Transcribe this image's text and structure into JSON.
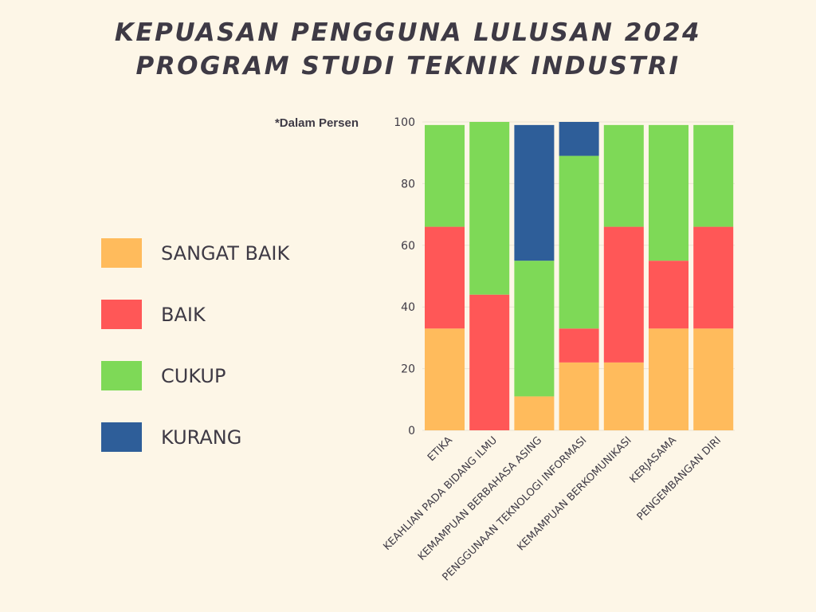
{
  "title": {
    "line1": "KEPUASAN PENGGUNA LULUSAN 2024",
    "line2": "PROGRAM STUDI TEKNIK INDUSTRI"
  },
  "note": "*Dalam Persen",
  "legend": [
    {
      "label": "SANGAT BAIK",
      "color": "#ffbb5c"
    },
    {
      "label": "BAIK",
      "color": "#ff5757"
    },
    {
      "label": "CUKUP",
      "color": "#7ed957"
    },
    {
      "label": "KURANG",
      "color": "#2e5e99"
    }
  ],
  "chart_data": {
    "type": "bar",
    "stacked": true,
    "categories": [
      "ETIKA",
      "KEAHLIAN PADA BIDANG ILMU",
      "KEMAMPUAN BERBAHASA ASING",
      "PENGGUNAAN TEKNOLOGI INFORMASI",
      "KEMAMPUAN BERKOMUNIKASI",
      "KERJASAMA",
      "PENGEMBANGAN DIRI"
    ],
    "series": [
      {
        "name": "SANGAT BAIK",
        "color": "#ffbb5c",
        "values": [
          33,
          0,
          11,
          22,
          22,
          33,
          33
        ]
      },
      {
        "name": "BAIK",
        "color": "#ff5757",
        "values": [
          33,
          44,
          0,
          11,
          44,
          22,
          33
        ]
      },
      {
        "name": "CUKUP",
        "color": "#7ed957",
        "values": [
          33,
          56,
          44,
          56,
          33,
          44,
          33
        ]
      },
      {
        "name": "KURANG",
        "color": "#2e5e99",
        "values": [
          0,
          0,
          44,
          11,
          0,
          0,
          0
        ]
      }
    ],
    "ylim": [
      0,
      100
    ],
    "yticks": [
      0,
      20,
      40,
      60,
      80,
      100
    ],
    "xlabel": "",
    "ylabel": "",
    "grid": true,
    "legend_position": "left"
  }
}
